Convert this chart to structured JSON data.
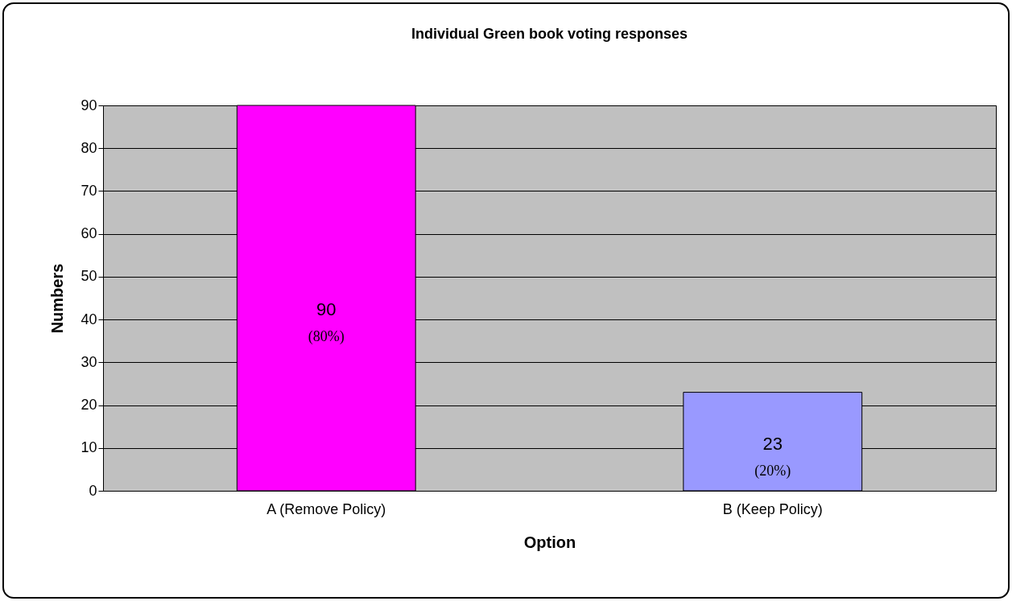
{
  "chart_data": {
    "type": "bar",
    "title": "Individual Green book voting responses",
    "xlabel": "Option",
    "ylabel": "Numbers",
    "categories": [
      "A (Remove Policy)",
      "B (Keep Policy)"
    ],
    "values": [
      90,
      23
    ],
    "colors": [
      "#ff00ff",
      "#9999ff"
    ],
    "ylim": [
      0,
      90
    ],
    "yticks": [
      0,
      10,
      20,
      30,
      40,
      50,
      60,
      70,
      80,
      90
    ],
    "grid": "y",
    "data_labels": true,
    "annotations": [
      "(80%)",
      "(20%)"
    ]
  }
}
